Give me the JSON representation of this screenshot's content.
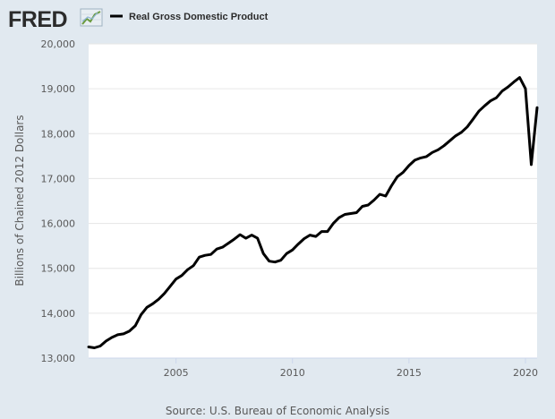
{
  "header": {
    "logo_text": "FRED",
    "logo_icon": "line-graph-icon"
  },
  "source": "Source: U.S. Bureau of Economic Analysis",
  "colors": {
    "background": "#e1e9f0",
    "plot_background": "#ffffff",
    "series_line": "#000000",
    "gridline": "#e6e6e6",
    "text": "#595959"
  },
  "chart_data": {
    "type": "line",
    "title": "",
    "xlabel": "",
    "ylabel": "Billions of Chained 2012 Dollars",
    "xlim": [
      2001.25,
      2020.5
    ],
    "ylim": [
      13000,
      20000
    ],
    "x_ticks": [
      2005,
      2010,
      2015,
      2020
    ],
    "x_tick_labels": [
      "2005",
      "2010",
      "2015",
      "2020"
    ],
    "y_ticks": [
      13000,
      14000,
      15000,
      16000,
      17000,
      18000,
      19000,
      20000
    ],
    "y_tick_labels": [
      "13,000",
      "14,000",
      "15,000",
      "16,000",
      "17,000",
      "18,000",
      "19,000",
      "20,000"
    ],
    "grid": true,
    "legend_position": "top-left",
    "series": [
      {
        "name": "Real Gross Domestic Product",
        "x": [
          2001.25,
          2001.5,
          2001.75,
          2002.0,
          2002.25,
          2002.5,
          2002.75,
          2003.0,
          2003.25,
          2003.5,
          2003.75,
          2004.0,
          2004.25,
          2004.5,
          2004.75,
          2005.0,
          2005.25,
          2005.5,
          2005.75,
          2006.0,
          2006.25,
          2006.5,
          2006.75,
          2007.0,
          2007.25,
          2007.5,
          2007.75,
          2008.0,
          2008.25,
          2008.5,
          2008.75,
          2009.0,
          2009.25,
          2009.5,
          2009.75,
          2010.0,
          2010.25,
          2010.5,
          2010.75,
          2011.0,
          2011.25,
          2011.5,
          2011.75,
          2012.0,
          2012.25,
          2012.5,
          2012.75,
          2013.0,
          2013.25,
          2013.5,
          2013.75,
          2014.0,
          2014.25,
          2014.5,
          2014.75,
          2015.0,
          2015.25,
          2015.5,
          2015.75,
          2016.0,
          2016.25,
          2016.5,
          2016.75,
          2017.0,
          2017.25,
          2017.5,
          2017.75,
          2018.0,
          2018.25,
          2018.5,
          2018.75,
          2019.0,
          2019.25,
          2019.5,
          2019.75,
          2020.0,
          2020.25,
          2020.5
        ],
        "values": [
          13250,
          13230,
          13270,
          13380,
          13460,
          13520,
          13540,
          13600,
          13720,
          13970,
          14130,
          14210,
          14310,
          14440,
          14600,
          14760,
          14840,
          14970,
          15060,
          15250,
          15290,
          15310,
          15430,
          15470,
          15560,
          15650,
          15750,
          15670,
          15740,
          15670,
          15330,
          15160,
          15140,
          15180,
          15330,
          15410,
          15540,
          15660,
          15740,
          15710,
          15820,
          15820,
          16000,
          16130,
          16200,
          16220,
          16240,
          16380,
          16410,
          16520,
          16650,
          16610,
          16840,
          17040,
          17140,
          17290,
          17410,
          17460,
          17490,
          17580,
          17640,
          17730,
          17840,
          17950,
          18030,
          18150,
          18320,
          18500,
          18620,
          18730,
          18800,
          18950,
          19040,
          19150,
          19250,
          19000,
          17310,
          18580
        ]
      }
    ]
  }
}
